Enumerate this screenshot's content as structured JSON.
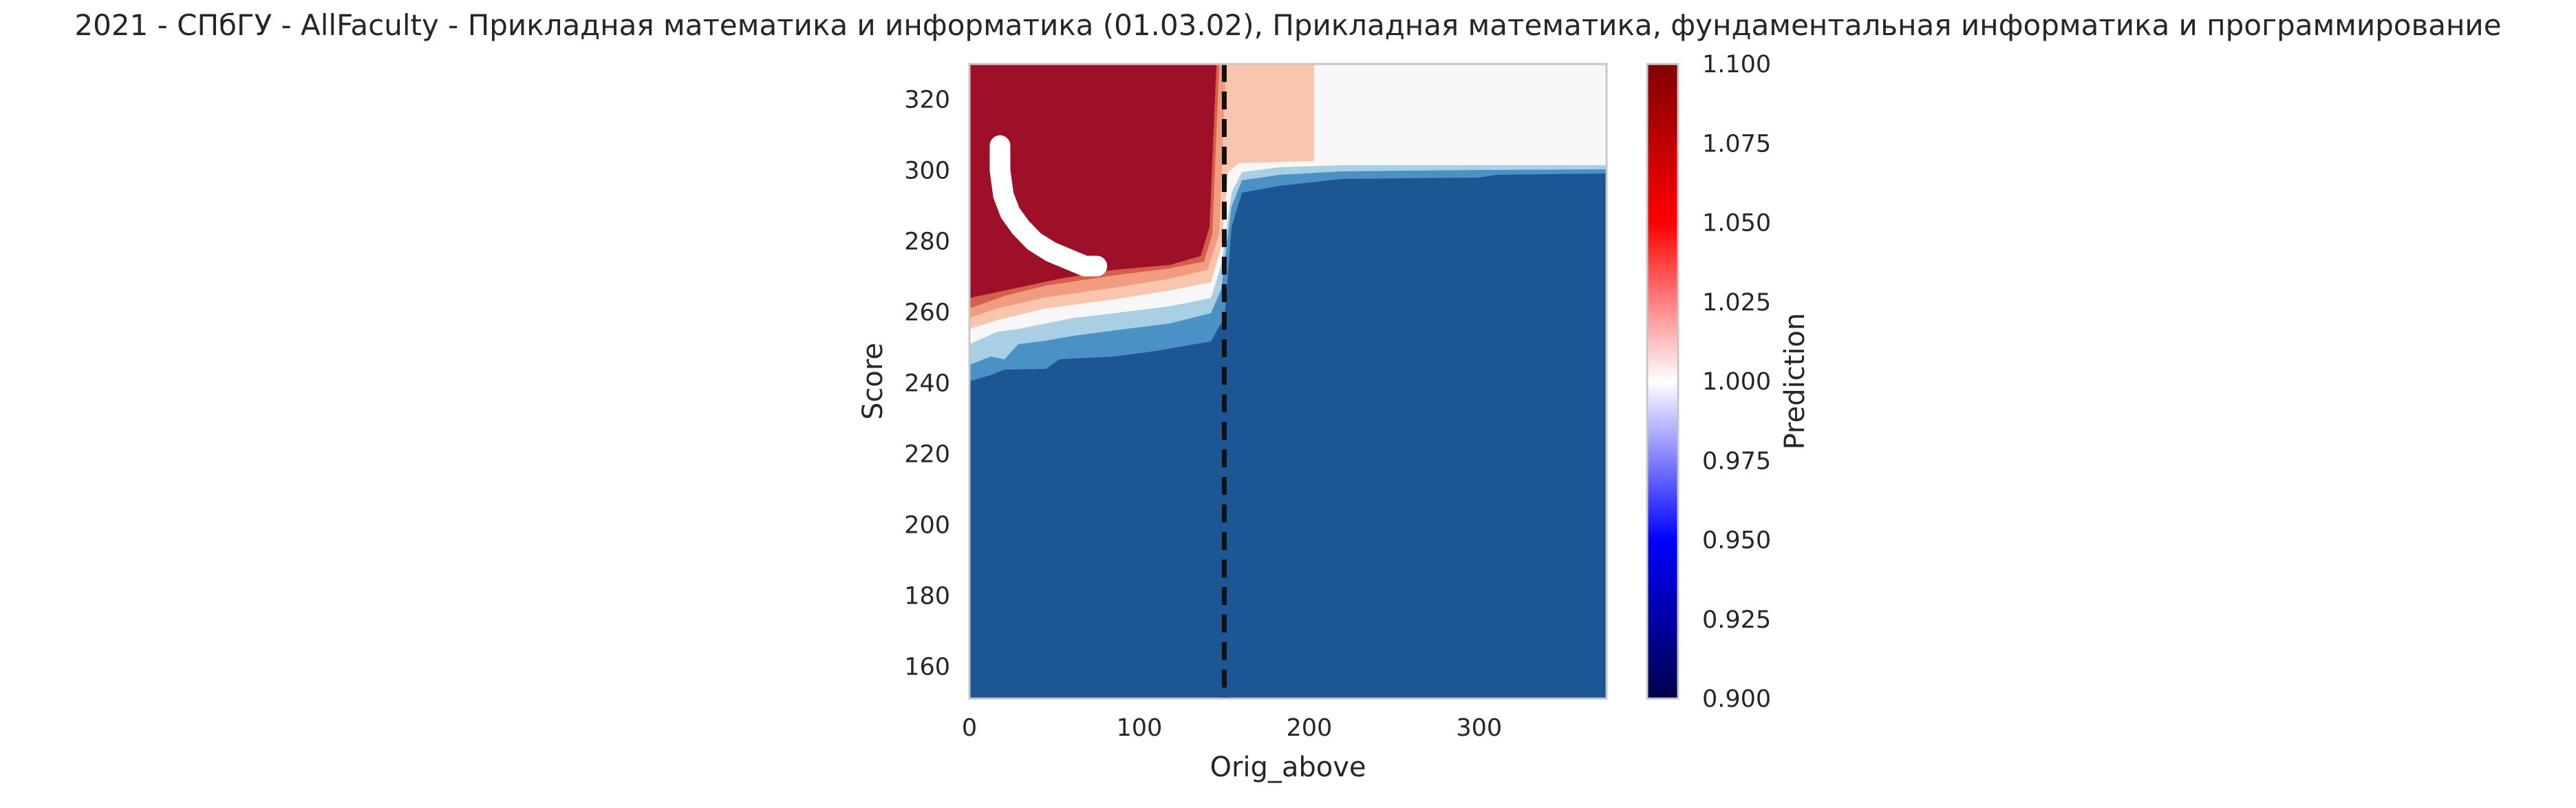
{
  "title": "2021 - СПбГУ - AllFaculty - Прикладная математика и информатика (01.03.02), Прикладная математика, фундаментальная информатика и программирование",
  "chart_data": {
    "type": "heatmap",
    "title": "2021 - СПбГУ - AllFaculty - Прикладная математика и информатика (01.03.02), Прикладная математика, фундаментальная информатика и программирование",
    "xlabel": "Orig_above",
    "ylabel": "Score",
    "xlim": [
      0,
      375
    ],
    "ylim": [
      151,
      330
    ],
    "xticks": [
      "0",
      "100",
      "200",
      "300"
    ],
    "xtick_values": [
      0,
      100,
      200,
      300
    ],
    "yticks": [
      "160",
      "180",
      "200",
      "220",
      "240",
      "260",
      "280",
      "300",
      "320"
    ],
    "ytick_values": [
      160,
      180,
      200,
      220,
      240,
      260,
      280,
      300,
      320
    ],
    "grid": false,
    "vline_x": 150,
    "vline_style": "dashed black",
    "colormap": "seismic",
    "colorbar": {
      "label": "Prediction",
      "min": 0.9,
      "max": 1.1,
      "ticks": [
        "0.900",
        "0.925",
        "0.950",
        "0.975",
        "1.000",
        "1.025",
        "1.050",
        "1.075",
        "1.100"
      ],
      "tick_values": [
        0.9,
        0.925,
        0.95,
        0.975,
        1.0,
        1.025,
        1.05,
        1.075,
        1.1
      ]
    },
    "region_colors": {
      "dark_blue": "#1c5694",
      "mid_blue": "#4a92c6",
      "light_blue": "#a9cfe5",
      "white": "#f7f7f7",
      "peach": "#f9c5ad",
      "light_red": "#f09c7f",
      "mid_red": "#d55f4d",
      "dark_red": "#9e1027"
    },
    "trajectory": {
      "color": "#ffffff",
      "points": [
        [
          18,
          307
        ],
        [
          18,
          300
        ],
        [
          20,
          293
        ],
        [
          24,
          288
        ],
        [
          30,
          284
        ],
        [
          38,
          280
        ],
        [
          48,
          277
        ],
        [
          58,
          275
        ],
        [
          68,
          273
        ],
        [
          75,
          273
        ]
      ]
    }
  }
}
